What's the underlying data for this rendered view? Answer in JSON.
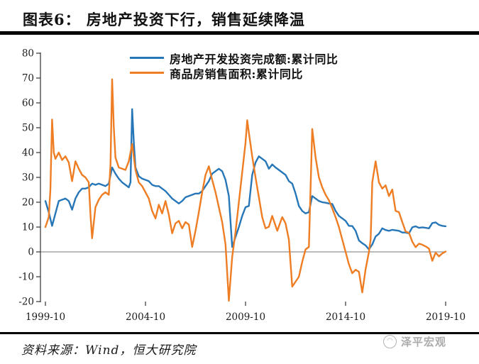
{
  "title": "图表6：  房地产投资下行，销售延续降温",
  "legend": [
    {
      "label": "房地产开发投资完成额:累计同比",
      "color": "#2777b8"
    },
    {
      "label": "商品房销售面积:累计同比",
      "color": "#ee7d23"
    }
  ],
  "footer": {
    "source": "资料来源：Wind，恒大研究院"
  },
  "watermark": {
    "text": "泽平宏观",
    "logo": "zeping-logo"
  },
  "chart_data": {
    "type": "line",
    "title": "图表6：  房地产投资下行，销售延续降温",
    "xlabel": "",
    "ylabel": "",
    "x_unit": "months since 1999-10",
    "xlim": [
      0,
      240
    ],
    "ylim": [
      -20,
      80
    ],
    "grid": "zero-line-only",
    "legend_position": "top-center",
    "y_ticks": [
      80,
      70,
      60,
      50,
      40,
      30,
      20,
      10,
      0,
      -10,
      -20
    ],
    "x_ticks": [
      [
        0,
        "1999-10"
      ],
      [
        60,
        "2004-10"
      ],
      [
        120,
        "2009-10"
      ],
      [
        180,
        "2014-10"
      ],
      [
        240,
        "2019-10"
      ]
    ],
    "zero_line_color": "#b0b0b0",
    "axis_color": "#404040",
    "series": [
      {
        "name": "房地产开发投资完成额:累计同比",
        "color": "#2777b8",
        "points": [
          [
            0,
            20.5
          ],
          [
            2,
            16
          ],
          [
            4,
            10.5
          ],
          [
            6,
            15.5
          ],
          [
            8,
            20.5
          ],
          [
            10,
            21
          ],
          [
            12,
            21.5
          ],
          [
            14,
            20.5
          ],
          [
            16,
            17
          ],
          [
            18,
            21.5
          ],
          [
            20,
            24
          ],
          [
            22,
            25.5
          ],
          [
            24,
            25.5
          ],
          [
            26,
            26
          ],
          [
            28,
            27.5
          ],
          [
            30,
            27
          ],
          [
            32,
            27.5
          ],
          [
            34,
            27
          ],
          [
            36,
            26.5
          ],
          [
            38,
            27.5
          ],
          [
            40,
            34
          ],
          [
            42,
            31.5
          ],
          [
            44,
            29.5
          ],
          [
            46,
            28
          ],
          [
            48,
            27
          ],
          [
            50,
            26
          ],
          [
            51,
            28
          ],
          [
            52,
            57.5
          ],
          [
            53,
            44
          ],
          [
            54,
            34
          ],
          [
            56,
            30.5
          ],
          [
            58,
            29.5
          ],
          [
            60,
            29
          ],
          [
            62,
            28.5
          ],
          [
            64,
            27
          ],
          [
            66,
            26.5
          ],
          [
            68,
            26.5
          ],
          [
            70,
            25.5
          ],
          [
            72,
            24.5
          ],
          [
            74,
            23
          ],
          [
            76,
            21.5
          ],
          [
            78,
            20.5
          ],
          [
            80,
            19.5
          ],
          [
            82,
            20.5
          ],
          [
            84,
            22
          ],
          [
            86,
            22.5
          ],
          [
            88,
            23
          ],
          [
            90,
            23.5
          ],
          [
            92,
            23.5
          ],
          [
            94,
            24.5
          ],
          [
            96,
            26.5
          ],
          [
            98,
            28.5
          ],
          [
            100,
            31.5
          ],
          [
            102,
            32.5
          ],
          [
            104,
            33.5
          ],
          [
            106,
            32.5
          ],
          [
            108,
            29
          ],
          [
            110,
            22.5
          ],
          [
            112,
            2
          ],
          [
            114,
            6
          ],
          [
            116,
            10
          ],
          [
            118,
            14.5
          ],
          [
            120,
            18
          ],
          [
            122,
            18.5
          ],
          [
            124,
            31
          ],
          [
            126,
            36
          ],
          [
            128,
            38.5
          ],
          [
            130,
            37.5
          ],
          [
            132,
            36.5
          ],
          [
            134,
            33.5
          ],
          [
            136,
            35.2
          ],
          [
            138,
            34
          ],
          [
            140,
            33
          ],
          [
            142,
            32
          ],
          [
            144,
            31
          ],
          [
            146,
            28.5
          ],
          [
            148,
            27.5
          ],
          [
            150,
            23.5
          ],
          [
            152,
            18.5
          ],
          [
            154,
            16.5
          ],
          [
            156,
            15.5
          ],
          [
            158,
            16
          ],
          [
            160,
            22.5
          ],
          [
            162,
            21.5
          ],
          [
            164,
            20.5
          ],
          [
            166,
            20
          ],
          [
            168,
            19.8
          ],
          [
            170,
            19.5
          ],
          [
            172,
            19.3
          ],
          [
            174,
            16.5
          ],
          [
            176,
            14.5
          ],
          [
            178,
            13.5
          ],
          [
            180,
            12.5
          ],
          [
            182,
            10.5
          ],
          [
            184,
            10.4
          ],
          [
            186,
            8.5
          ],
          [
            188,
            4.6
          ],
          [
            190,
            3.5
          ],
          [
            192,
            2.6
          ],
          [
            194,
            1.0
          ],
          [
            196,
            3.0
          ],
          [
            198,
            6.2
          ],
          [
            200,
            7.3
          ],
          [
            202,
            9.5
          ],
          [
            204,
            8.8
          ],
          [
            206,
            8.5
          ],
          [
            208,
            8.9
          ],
          [
            210,
            8.7
          ],
          [
            212,
            8.5
          ],
          [
            214,
            7.8
          ],
          [
            216,
            7.8
          ],
          [
            218,
            7.5
          ],
          [
            220,
            9.9
          ],
          [
            222,
            10.3
          ],
          [
            224,
            9.7
          ],
          [
            226,
            9.9
          ],
          [
            228,
            9.7
          ],
          [
            230,
            9.5
          ],
          [
            232,
            11.6
          ],
          [
            234,
            11.9
          ],
          [
            236,
            10.9
          ],
          [
            238,
            10.5
          ],
          [
            240,
            10.3
          ]
        ]
      },
      {
        "name": "商品房销售面积:累计同比",
        "color": "#ee7d23",
        "points": [
          [
            0,
            10
          ],
          [
            2,
            14
          ],
          [
            3,
            25
          ],
          [
            4,
            53.3
          ],
          [
            5,
            40
          ],
          [
            6,
            37.5
          ],
          [
            8,
            40
          ],
          [
            10,
            37
          ],
          [
            12,
            38.5
          ],
          [
            14,
            36
          ],
          [
            16,
            28.5
          ],
          [
            18,
            36.5
          ],
          [
            20,
            33.5
          ],
          [
            22,
            31
          ],
          [
            24,
            30
          ],
          [
            26,
            28
          ],
          [
            27,
            15
          ],
          [
            28,
            5.5
          ],
          [
            30,
            18
          ],
          [
            32,
            21
          ],
          [
            34,
            23
          ],
          [
            36,
            24
          ],
          [
            38,
            23
          ],
          [
            39,
            35
          ],
          [
            40,
            69.5
          ],
          [
            41,
            50
          ],
          [
            42,
            38
          ],
          [
            44,
            34
          ],
          [
            46,
            33.5
          ],
          [
            48,
            33
          ],
          [
            50,
            36.5
          ],
          [
            52,
            43.5
          ],
          [
            54,
            33
          ],
          [
            56,
            28
          ],
          [
            58,
            26.5
          ],
          [
            60,
            24
          ],
          [
            62,
            21.5
          ],
          [
            64,
            16.5
          ],
          [
            66,
            13.5
          ],
          [
            68,
            19
          ],
          [
            70,
            15.5
          ],
          [
            72,
            20.5
          ],
          [
            74,
            15
          ],
          [
            76,
            7.5
          ],
          [
            78,
            11.5
          ],
          [
            80,
            12.5
          ],
          [
            82,
            9.5
          ],
          [
            84,
            12
          ],
          [
            86,
            11
          ],
          [
            88,
            2
          ],
          [
            90,
            8.5
          ],
          [
            92,
            16
          ],
          [
            94,
            24
          ],
          [
            96,
            31
          ],
          [
            98,
            34.5
          ],
          [
            100,
            29
          ],
          [
            102,
            24
          ],
          [
            104,
            18
          ],
          [
            106,
            12
          ],
          [
            108,
            3
          ],
          [
            110,
            -19.7
          ],
          [
            112,
            -2
          ],
          [
            114,
            8
          ],
          [
            116,
            20
          ],
          [
            118,
            32
          ],
          [
            120,
            44
          ],
          [
            121,
            53
          ],
          [
            122,
            48
          ],
          [
            124,
            38.5
          ],
          [
            126,
            30
          ],
          [
            128,
            22
          ],
          [
            130,
            14
          ],
          [
            132,
            9.5
          ],
          [
            134,
            10.1
          ],
          [
            136,
            14.5
          ],
          [
            139,
            8.5
          ],
          [
            142,
            14
          ],
          [
            144,
            11.5
          ],
          [
            146,
            4.9
          ],
          [
            148,
            -14
          ],
          [
            150,
            -12
          ],
          [
            152,
            -10
          ],
          [
            154,
            -4
          ],
          [
            156,
            1
          ],
          [
            158,
            2
          ],
          [
            160,
            49.5
          ],
          [
            162,
            38
          ],
          [
            164,
            30
          ],
          [
            166,
            26
          ],
          [
            168,
            23
          ],
          [
            170,
            20.8
          ],
          [
            172,
            17.5
          ],
          [
            174,
            14
          ],
          [
            176,
            10
          ],
          [
            178,
            5
          ],
          [
            180,
            0
          ],
          [
            182,
            -5
          ],
          [
            184,
            -8.6
          ],
          [
            186,
            -7.2
          ],
          [
            188,
            -8
          ],
          [
            190,
            -16.3
          ],
          [
            192,
            -7
          ],
          [
            194,
            0
          ],
          [
            195,
            5
          ],
          [
            196,
            28
          ],
          [
            198,
            36.5
          ],
          [
            200,
            28
          ],
          [
            202,
            25.5
          ],
          [
            204,
            26.8
          ],
          [
            206,
            22.5
          ],
          [
            208,
            25.1
          ],
          [
            210,
            16.5
          ],
          [
            212,
            16
          ],
          [
            214,
            12
          ],
          [
            216,
            8.2
          ],
          [
            218,
            7.7
          ],
          [
            220,
            4.1
          ],
          [
            222,
            1.9
          ],
          [
            224,
            3.3
          ],
          [
            226,
            2.9
          ],
          [
            228,
            2.2
          ],
          [
            230,
            1.3
          ],
          [
            232,
            -3.6
          ],
          [
            234,
            -0.3
          ],
          [
            236,
            -1.8
          ],
          [
            238,
            -0.6
          ],
          [
            240,
            0.1
          ]
        ]
      }
    ]
  }
}
